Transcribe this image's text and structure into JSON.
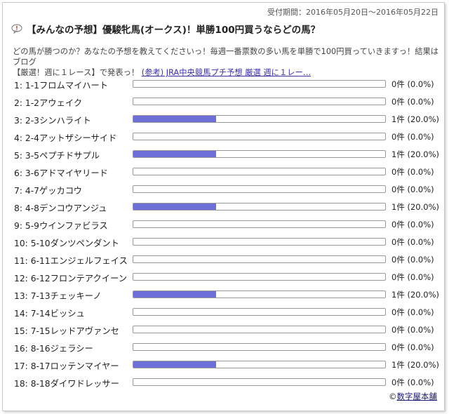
{
  "period": "受付期間：2016年05月20日～2016年05月22日",
  "title": "【みんなの予想】優駿牝馬(オークス)！単勝100円買うならどの馬？",
  "description": {
    "line1": "どの馬が勝つのか？あなたの予想を教えてくださいっ！毎週一番票数の多い馬を単勝で100円買っていきますっ！結果はブログ",
    "line2_prefix": "【厳選！週に１レース】で発表っ！ ",
    "link": "(参考) JRA中央競馬プチ予想 厳選 週に１レー…"
  },
  "horses": [
    {
      "label": "1: 1-1フロムマイハート",
      "count": "0件 (0.0%)",
      "pct": 0
    },
    {
      "label": "2: 1-2アウェイク",
      "count": "0件 (0.0%)",
      "pct": 0
    },
    {
      "label": "3: 2-3シンハライト",
      "count": "1件 (20.0%)",
      "pct": 20
    },
    {
      "label": "4: 2-4アットザシーサイド",
      "count": "0件 (0.0%)",
      "pct": 0
    },
    {
      "label": "5: 3-5ペプチドサプル",
      "count": "1件 (20.0%)",
      "pct": 20
    },
    {
      "label": "6: 3-6アドマイヤリード",
      "count": "0件 (0.0%)",
      "pct": 0
    },
    {
      "label": "7: 4-7ゲッカコウ",
      "count": "0件 (0.0%)",
      "pct": 0
    },
    {
      "label": "8: 4-8デンコウアンジュ",
      "count": "1件 (20.0%)",
      "pct": 20
    },
    {
      "label": "9: 5-9ウインファビラス",
      "count": "0件 (0.0%)",
      "pct": 0
    },
    {
      "label": "10: 5-10ダンツペンダント",
      "count": "0件 (0.0%)",
      "pct": 0
    },
    {
      "label": "11: 6-11エンジェルフェイス",
      "count": "0件 (0.0%)",
      "pct": 0
    },
    {
      "label": "12: 6-12フロンテアクイーン",
      "count": "0件 (0.0%)",
      "pct": 0
    },
    {
      "label": "13: 7-13チェッキーノ",
      "count": "1件 (20.0%)",
      "pct": 20
    },
    {
      "label": "14: 7-14ビッシュ",
      "count": "0件 (0.0%)",
      "pct": 0
    },
    {
      "label": "15: 7-15レッドアヴァンセ",
      "count": "0件 (0.0%)",
      "pct": 0
    },
    {
      "label": "16: 8-16ジェラシー",
      "count": "0件 (0.0%)",
      "pct": 0
    },
    {
      "label": "17: 8-17ロッテンマイヤー",
      "count": "1件 (20.0%)",
      "pct": 20
    },
    {
      "label": "18: 8-18ダイワドレッサー",
      "count": "0件 (0.0%)",
      "pct": 0
    }
  ],
  "credit": {
    "prefix": "©",
    "name": "数字屋本舗"
  },
  "colors": {
    "bar_fill": "#6e6ed8",
    "bar_border": "#999999",
    "link": "#3a2fa0"
  },
  "icons": {
    "title": "question-bubble-icon"
  }
}
